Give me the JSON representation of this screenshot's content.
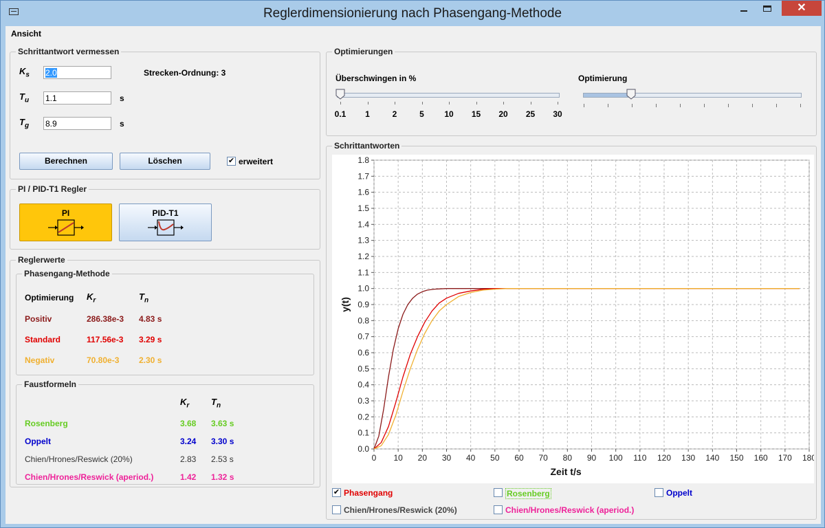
{
  "window": {
    "title": "Reglerdimensionierung nach Phasengang-Methode",
    "close_glyph": "✕"
  },
  "menu": {
    "items": [
      "Ansicht"
    ]
  },
  "schrittantwort": {
    "title": "Schrittantwort vermessen",
    "ks_label": "K",
    "ks_sub": "s",
    "ks_value": "2.0",
    "tu_label": "T",
    "tu_sub": "u",
    "tu_value": "1.1",
    "tu_unit": "s",
    "tg_label": "T",
    "tg_sub": "g",
    "tg_value": "8.9",
    "tg_unit": "s",
    "order_label": "Strecken-Ordnung: 3",
    "calc_button": "Berechnen",
    "clear_button": "Löschen",
    "extended_label": "erweitert",
    "extended_checked": true
  },
  "regler": {
    "title": "PI / PID-T1 Regler",
    "pi_label": "PI",
    "pid_label": "PID-T1",
    "selected": "PI"
  },
  "reglerwerte": {
    "title": "Reglerwerte",
    "phasengang": {
      "title": "Phasengang-Methode",
      "col_opt": "Optimierung",
      "col_kr": "K",
      "col_kr_sub": "r",
      "col_tn": "T",
      "col_tn_sub": "n",
      "rows": [
        {
          "name": "Positiv",
          "kr": "286.38e-3",
          "tn": "4.83 s",
          "color": "#8b1a1a"
        },
        {
          "name": "Standard",
          "kr": "117.56e-3",
          "tn": "3.29 s",
          "color": "#e00000"
        },
        {
          "name": "Negativ",
          "kr": "70.80e-3",
          "tn": "2.30 s",
          "color": "#f0b030"
        }
      ]
    },
    "faustformeln": {
      "title": "Faustformeln",
      "col_kr": "K",
      "col_kr_sub": "r",
      "col_tn": "T",
      "col_tn_sub": "n",
      "rows": [
        {
          "name": "Rosenberg",
          "kr": "3.68",
          "tn": "3.63 s",
          "color": "#66cc22",
          "bold": true
        },
        {
          "name": "Oppelt",
          "kr": "3.24",
          "tn": "3.30 s",
          "color": "#0000cc",
          "bold": true
        },
        {
          "name": "Chien/Hrones/Reswick (20%)",
          "kr": "2.83",
          "tn": "2.53 s",
          "color": "#333333",
          "bold": false
        },
        {
          "name": "Chien/Hrones/Reswick (aperiod.)",
          "kr": "1.42",
          "tn": "1.32 s",
          "color": "#ee2299",
          "bold": true
        }
      ]
    }
  },
  "optimierungen": {
    "title": "Optimierungen",
    "overshoot_label": "Überschwingen in %",
    "overshoot_ticks": [
      "0.1",
      "1",
      "2",
      "5",
      "10",
      "15",
      "20",
      "25",
      "30"
    ],
    "overshoot_value_index": 0,
    "optimierung_label": "Optimierung",
    "optimierung_value": 0.22
  },
  "schrittantworten": {
    "title": "Schrittantworten",
    "legend": [
      {
        "label": "Phasengang",
        "checked": true,
        "color": "#e00000"
      },
      {
        "label": "Rosenberg",
        "checked": false,
        "color": "#66cc22"
      },
      {
        "label": "Oppelt",
        "checked": false,
        "color": "#0000cc"
      },
      {
        "label": "Chien/Hrones/Reswick (20%)",
        "checked": false,
        "color": "#444444"
      },
      {
        "label": "Chien/Hrones/Reswick (aperiod.)",
        "checked": false,
        "color": "#ee2299"
      }
    ]
  },
  "chart_data": {
    "type": "line",
    "xlabel": "Zeit t/s",
    "ylabel": "y(t)",
    "xlim": [
      0,
      180
    ],
    "ylim": [
      0,
      1.8
    ],
    "xticks": [
      0,
      10,
      20,
      30,
      40,
      50,
      60,
      70,
      80,
      90,
      100,
      110,
      120,
      130,
      140,
      150,
      160,
      170,
      180
    ],
    "yticks": [
      "0.0",
      "0.1",
      "0.2",
      "0.3",
      "0.4",
      "0.5",
      "0.6",
      "0.7",
      "0.8",
      "0.9",
      "1.0",
      "1.1",
      "1.2",
      "1.3",
      "1.4",
      "1.5",
      "1.6",
      "1.7",
      "1.8"
    ],
    "grid": true,
    "series": [
      {
        "color": "#8b1a1a",
        "x": [
          0,
          2,
          4,
          6,
          8,
          10,
          12,
          14,
          16,
          18,
          20,
          22,
          25,
          30,
          40,
          60,
          100,
          176
        ],
        "y": [
          0,
          0.08,
          0.25,
          0.45,
          0.62,
          0.75,
          0.84,
          0.9,
          0.94,
          0.965,
          0.98,
          0.99,
          0.996,
          1.0,
          1.0,
          1.0,
          1.0,
          1.0
        ]
      },
      {
        "color": "#e00000",
        "x": [
          0,
          3,
          6,
          9,
          12,
          15,
          18,
          21,
          24,
          27,
          30,
          35,
          40,
          45,
          50,
          60,
          100,
          176
        ],
        "y": [
          0,
          0.04,
          0.14,
          0.29,
          0.45,
          0.59,
          0.7,
          0.79,
          0.86,
          0.91,
          0.94,
          0.97,
          0.985,
          0.995,
          1.0,
          1.0,
          1.0,
          1.0
        ]
      },
      {
        "color": "#f0b030",
        "x": [
          0,
          3,
          6,
          9,
          12,
          15,
          18,
          21,
          24,
          27,
          30,
          35,
          40,
          45,
          50,
          55,
          60,
          100,
          176
        ],
        "y": [
          0,
          0.02,
          0.09,
          0.21,
          0.36,
          0.5,
          0.62,
          0.72,
          0.8,
          0.86,
          0.9,
          0.95,
          0.975,
          0.99,
          0.996,
          1.0,
          1.0,
          1.0,
          1.0
        ]
      }
    ]
  }
}
